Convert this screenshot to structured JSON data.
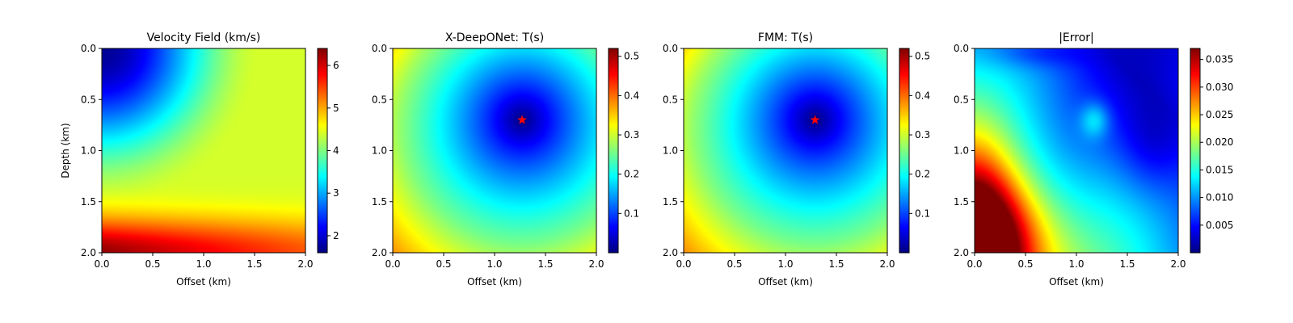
{
  "chart_data": [
    {
      "type": "heatmap",
      "title": "Velocity Field (km/s)",
      "xlabel": "Offset (km)",
      "ylabel": "Depth (km)",
      "xlim": [
        0.0,
        2.0
      ],
      "ylim": [
        2.0,
        0.0
      ],
      "x_ticks": [
        "0.0",
        "0.5",
        "1.0",
        "1.5",
        "2.0"
      ],
      "y_ticks": [
        "0.0",
        "0.5",
        "1.0",
        "1.5",
        "2.0"
      ],
      "colormap": "jet",
      "colorbar": {
        "min": 1.6,
        "max": 6.4,
        "ticks": [
          "2",
          "3",
          "4",
          "5",
          "6"
        ],
        "tick_values": [
          2,
          3,
          4,
          5,
          6
        ]
      },
      "field": {
        "kind": "velocity",
        "top_left": 1.7,
        "mid_plateau": 4.4,
        "bottom_left": 6.3,
        "bottom_right": 5.4
      }
    },
    {
      "type": "heatmap",
      "title": "X-DeepONet: T(s)",
      "xlabel": "Offset (km)",
      "ylabel": "",
      "xlim": [
        0.0,
        2.0
      ],
      "ylim": [
        2.0,
        0.0
      ],
      "x_ticks": [
        "0.0",
        "0.5",
        "1.0",
        "1.5",
        "2.0"
      ],
      "y_ticks": [
        "0.0",
        "0.5",
        "1.0",
        "1.5",
        "2.0"
      ],
      "colormap": "jet",
      "colorbar": {
        "min": 0.0,
        "max": 0.52,
        "ticks": [
          "0.1",
          "0.2",
          "0.3",
          "0.4",
          "0.5"
        ],
        "tick_values": [
          0.1,
          0.2,
          0.3,
          0.4,
          0.5
        ]
      },
      "source": {
        "x": 1.27,
        "y": 0.7,
        "marker": "star",
        "color": "#ff0000"
      },
      "field": {
        "kind": "traveltime",
        "max_value": 0.51
      }
    },
    {
      "type": "heatmap",
      "title": "FMM: T(s)",
      "xlabel": "Offset (km)",
      "ylabel": "",
      "xlim": [
        0.0,
        2.0
      ],
      "ylim": [
        2.0,
        0.0
      ],
      "x_ticks": [
        "0.0",
        "0.5",
        "1.0",
        "1.5",
        "2.0"
      ],
      "y_ticks": [
        "0.0",
        "0.5",
        "1.0",
        "1.5",
        "2.0"
      ],
      "colormap": "jet",
      "colorbar": {
        "min": 0.0,
        "max": 0.52,
        "ticks": [
          "0.1",
          "0.2",
          "0.3",
          "0.4",
          "0.5"
        ],
        "tick_values": [
          0.1,
          0.2,
          0.3,
          0.4,
          0.5
        ]
      },
      "source": {
        "x": 1.29,
        "y": 0.7,
        "marker": "star",
        "color": "#ff0000"
      },
      "field": {
        "kind": "traveltime",
        "max_value": 0.51
      }
    },
    {
      "type": "heatmap",
      "title": "|Error|",
      "xlabel": "Offset (km)",
      "ylabel": "",
      "xlim": [
        0.0,
        2.0
      ],
      "ylim": [
        2.0,
        0.0
      ],
      "x_ticks": [
        "0.0",
        "0.5",
        "1.0",
        "1.5",
        "2.0"
      ],
      "y_ticks": [
        "0.0",
        "0.5",
        "1.0",
        "1.5",
        "2.0"
      ],
      "colormap": "jet",
      "colorbar": {
        "min": 0.0,
        "max": 0.037,
        "ticks": [
          "0.005",
          "0.010",
          "0.015",
          "0.020",
          "0.025",
          "0.030",
          "0.035"
        ],
        "tick_values": [
          0.005,
          0.01,
          0.015,
          0.02,
          0.025,
          0.03,
          0.035
        ]
      },
      "field": {
        "kind": "error",
        "max_value": 0.036,
        "peak_at": [
          0.0,
          1.8
        ]
      }
    }
  ]
}
